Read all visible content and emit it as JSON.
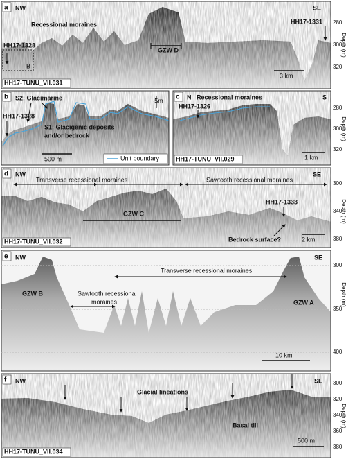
{
  "panels": [
    {
      "letter": "a",
      "left": "NW",
      "right": "SE",
      "labels": [
        "Recessional moraines",
        "GZW D",
        "HH17-1328",
        "B",
        "HH17-1331"
      ],
      "scale": "3 km",
      "line": "HH17-TUNU_VII.031",
      "axis_title": "Depth (m)",
      "ticks": [
        280,
        300,
        320
      ]
    },
    {
      "letter": "b",
      "labels": [
        "S2: Glacimarine",
        "HH17-1328",
        "S1: Glacigenic deposits",
        "and/or bedrock",
        "~5m"
      ],
      "scale": "500 m",
      "legend": "Unit boundary"
    },
    {
      "letter": "c",
      "left": "N",
      "right": "S",
      "labels": [
        "Recessional moraines",
        "HH17-1326"
      ],
      "scale": "1 km",
      "line": "HH17-TUNU_VII.029",
      "axis_title": "Depth (m)",
      "ticks": [
        280,
        300,
        320
      ]
    },
    {
      "letter": "d",
      "left": "NW",
      "right": "SE",
      "labels": [
        "Transverse recessional moraines",
        "Sawtooth recessional moraines",
        "GZW C",
        "HH17-1333",
        "Bedrock surface?"
      ],
      "scale": "2 km",
      "line": "HH17-TUNU_VII.032",
      "axis_title": "Depth (m)",
      "ticks": [
        300,
        340,
        380
      ]
    },
    {
      "letter": "e",
      "left": "NW",
      "right": "SE",
      "labels": [
        "Transverse recessional moraines",
        "GZW B",
        "Sawtooth recessional",
        "moraines",
        "GZW A"
      ],
      "scale": "10 km",
      "axis_title": "Depth (m)",
      "ticks": [
        300,
        350,
        400
      ]
    },
    {
      "letter": "f",
      "left": "NW",
      "right": "SE",
      "labels": [
        "Glacial lineations",
        "Basal till"
      ],
      "scale": "500 m",
      "line": "HH17-TUNU_VII.034",
      "axis_title": "Depth (m)",
      "ticks": [
        300,
        320,
        340,
        360,
        380
      ]
    }
  ]
}
